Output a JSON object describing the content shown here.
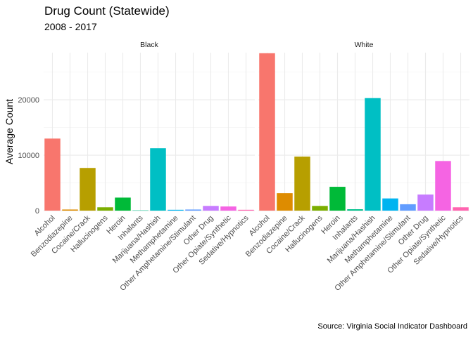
{
  "header": {
    "title": "Drug Count (Statewide)",
    "subtitle": "2008 - 2017"
  },
  "caption": "Source: Virginia Social Indicator Dashboard",
  "chart_data": {
    "type": "bar",
    "title": "Drug Count (Statewide)",
    "subtitle": "2008 - 2017",
    "xlabel": "",
    "ylabel": "Average Count",
    "ylim": [
      0,
      28500
    ],
    "y_ticks": [
      0,
      10000,
      20000
    ],
    "y_tick_labels": [
      "0",
      "10000",
      "20000"
    ],
    "grid": true,
    "legend": "none",
    "categories": [
      "Alcohol",
      "Benzodiazepine",
      "Cocaine/Crack",
      "Hallucinogens",
      "Heroin",
      "Inhalants",
      "Marijuana/Hashish",
      "Methamphetamine",
      "Other Amphetamine/Stimulant",
      "Other Drug",
      "Other Opiate/Synthetic",
      "Sedative/Hypnotics"
    ],
    "colors": [
      "#F8766D",
      "#DE8C00",
      "#B79F00",
      "#7CAE00",
      "#00BA38",
      "#00C08B",
      "#00BFC4",
      "#00B4F0",
      "#619CFF",
      "#C77CFF",
      "#F564E3",
      "#FF64B0"
    ],
    "panels": [
      {
        "name": "Black",
        "values": [
          13000,
          200,
          7700,
          600,
          2350,
          50,
          11250,
          150,
          200,
          850,
          750,
          150
        ]
      },
      {
        "name": "White",
        "values": [
          28400,
          3150,
          9750,
          850,
          4300,
          250,
          20300,
          2200,
          1150,
          2900,
          8950,
          600
        ]
      }
    ]
  }
}
